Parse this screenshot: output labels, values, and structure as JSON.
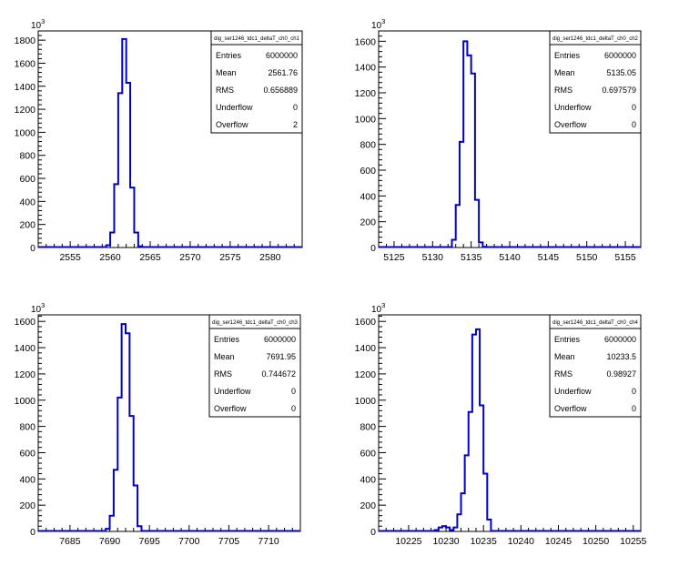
{
  "exponent_base": "10",
  "exponent_power": "3",
  "line_color": "#0000cc",
  "chart_data": [
    {
      "type": "bar",
      "histogram_name": "dig_ser1246_tdc1_deltaT_ch0_ch1",
      "stats": [
        {
          "label": "Entries",
          "value": "6000000"
        },
        {
          "label": "Mean",
          "value": "2561.76"
        },
        {
          "label": "RMS",
          "value": "0.656889"
        },
        {
          "label": "Underflow",
          "value": "0"
        },
        {
          "label": "Overflow",
          "value": "2"
        }
      ],
      "xlim": [
        2551,
        2584
      ],
      "ylim": [
        0,
        1880
      ],
      "xticks": [
        2555,
        2560,
        2565,
        2570,
        2575,
        2580
      ],
      "yticks": [
        0,
        200,
        400,
        600,
        800,
        1000,
        1200,
        1400,
        1600,
        1800
      ],
      "bins_x": [
        2559.5,
        2560,
        2560.5,
        2561,
        2561.5,
        2562,
        2562.5,
        2563,
        2563.5
      ],
      "values": [
        20,
        130,
        550,
        1340,
        1810,
        1430,
        520,
        130,
        10
      ]
    },
    {
      "type": "bar",
      "histogram_name": "dig_ser1246_tdc1_deltaT_ch0_ch2",
      "stats": [
        {
          "label": "Entries",
          "value": "6000000"
        },
        {
          "label": "Mean",
          "value": "5135.05"
        },
        {
          "label": "RMS",
          "value": "0.697579"
        },
        {
          "label": "Underflow",
          "value": "0"
        },
        {
          "label": "Overflow",
          "value": "0"
        }
      ],
      "xlim": [
        5123,
        5157
      ],
      "ylim": [
        0,
        1680
      ],
      "xticks": [
        5125,
        5130,
        5135,
        5140,
        5145,
        5150,
        5155
      ],
      "yticks": [
        0,
        200,
        400,
        600,
        800,
        1000,
        1200,
        1400,
        1600
      ],
      "bins_x": [
        5132.5,
        5133,
        5133.5,
        5134,
        5134.5,
        5135,
        5135.5,
        5136,
        5136.5
      ],
      "values": [
        60,
        330,
        820,
        1600,
        1490,
        1350,
        370,
        40,
        5
      ]
    },
    {
      "type": "bar",
      "histogram_name": "dig_ser1246_tdc1_deltaT_ch0_ch3",
      "stats": [
        {
          "label": "Entries",
          "value": "6000000"
        },
        {
          "label": "Mean",
          "value": "7691.95"
        },
        {
          "label": "RMS",
          "value": "0.744672"
        },
        {
          "label": "Underflow",
          "value": "0"
        },
        {
          "label": "Overflow",
          "value": "0"
        }
      ],
      "xlim": [
        7681,
        7714
      ],
      "ylim": [
        0,
        1650
      ],
      "xticks": [
        7685,
        7690,
        7695,
        7700,
        7705,
        7710
      ],
      "yticks": [
        0,
        200,
        400,
        600,
        800,
        1000,
        1200,
        1400,
        1600
      ],
      "bins_x": [
        7689.5,
        7690,
        7690.5,
        7691,
        7691.5,
        7692,
        7692.5,
        7693,
        7693.5
      ],
      "values": [
        20,
        120,
        470,
        1020,
        1580,
        1510,
        880,
        350,
        40
      ]
    },
    {
      "type": "bar",
      "histogram_name": "dig_ser1246_tdc1_deltaT_ch0_ch4",
      "stats": [
        {
          "label": "Entries",
          "value": "6000000"
        },
        {
          "label": "Mean",
          "value": "10233.5"
        },
        {
          "label": "RMS",
          "value": "0.98927"
        },
        {
          "label": "Underflow",
          "value": "0"
        },
        {
          "label": "Overflow",
          "value": "0"
        }
      ],
      "xlim": [
        10221,
        10256
      ],
      "ylim": [
        0,
        1650
      ],
      "xticks": [
        10225,
        10230,
        10235,
        10240,
        10245,
        10250,
        10255
      ],
      "yticks": [
        0,
        200,
        400,
        600,
        800,
        1000,
        1200,
        1400,
        1600
      ],
      "bins_x": [
        10228.5,
        10229,
        10229.5,
        10230,
        10230.5,
        10231,
        10231.5,
        10232,
        10232.5,
        10233,
        10233.5,
        10234,
        10234.5,
        10235,
        10235.5
      ],
      "values": [
        10,
        30,
        40,
        30,
        10,
        30,
        130,
        290,
        580,
        910,
        1500,
        1540,
        960,
        440,
        90
      ]
    }
  ]
}
